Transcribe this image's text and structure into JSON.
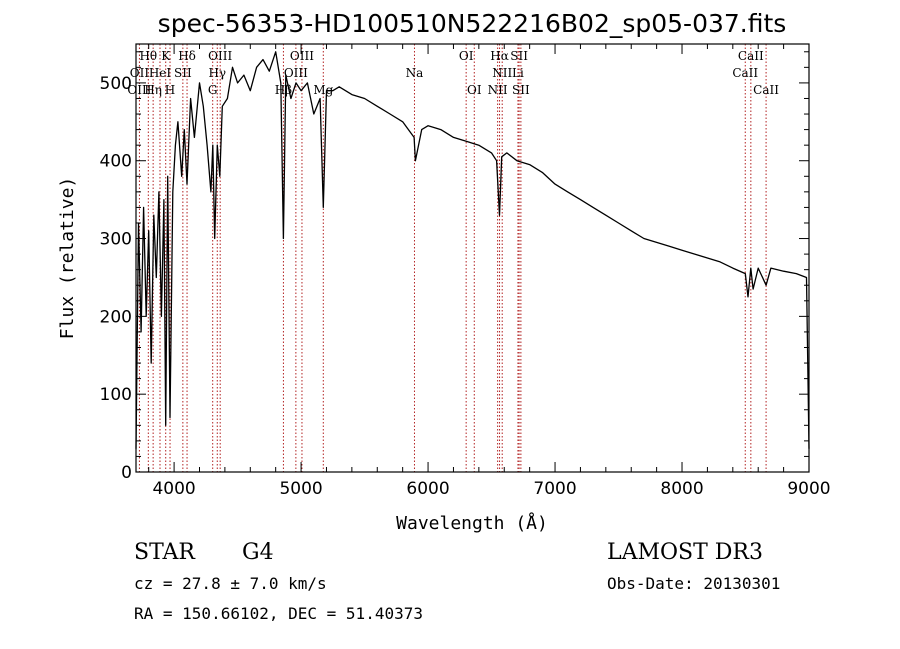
{
  "chart_data": {
    "type": "line",
    "title": "spec-56353-HD100510N522216B02_sp05-037.fits",
    "xlabel": "Wavelength (Å)",
    "ylabel": "Flux (relative)",
    "xlim": [
      3700,
      9000
    ],
    "ylim": [
      0,
      550
    ],
    "x_ticks": [
      4000,
      5000,
      6000,
      7000,
      8000,
      9000
    ],
    "y_ticks": [
      0,
      100,
      200,
      300,
      400,
      500
    ],
    "grid": false,
    "series": [
      {
        "name": "flux",
        "x": [
          3700,
          3720,
          3740,
          3760,
          3780,
          3800,
          3820,
          3840,
          3860,
          3880,
          3900,
          3920,
          3934,
          3950,
          3968,
          3990,
          4010,
          4030,
          4060,
          4080,
          4102,
          4130,
          4160,
          4200,
          4230,
          4260,
          4290,
          4305,
          4320,
          4340,
          4360,
          4380,
          4420,
          4460,
          4500,
          4550,
          4600,
          4650,
          4700,
          4750,
          4800,
          4840,
          4861,
          4880,
          4920,
          4960,
          5000,
          5050,
          5100,
          5150,
          5175,
          5200,
          5250,
          5300,
          5400,
          5500,
          5600,
          5700,
          5800,
          5890,
          5900,
          5950,
          6000,
          6100,
          6200,
          6300,
          6400,
          6500,
          6540,
          6563,
          6580,
          6620,
          6700,
          6800,
          6900,
          7000,
          7100,
          7200,
          7300,
          7400,
          7500,
          7600,
          7700,
          7800,
          7900,
          8000,
          8100,
          8200,
          8300,
          8400,
          8498,
          8520,
          8542,
          8560,
          8600,
          8662,
          8700,
          8800,
          8900,
          8980,
          9000
        ],
        "y": [
          30,
          320,
          180,
          340,
          200,
          310,
          140,
          330,
          250,
          360,
          200,
          350,
          60,
          380,
          70,
          360,
          420,
          450,
          380,
          440,
          370,
          480,
          430,
          500,
          470,
          420,
          360,
          420,
          300,
          420,
          380,
          470,
          480,
          520,
          500,
          510,
          490,
          520,
          530,
          515,
          540,
          500,
          300,
          510,
          480,
          500,
          490,
          500,
          460,
          480,
          340,
          490,
          490,
          495,
          485,
          480,
          470,
          460,
          450,
          430,
          400,
          440,
          445,
          440,
          430,
          425,
          420,
          410,
          400,
          330,
          405,
          410,
          400,
          395,
          385,
          370,
          360,
          350,
          340,
          330,
          320,
          310,
          300,
          295,
          290,
          285,
          280,
          275,
          270,
          262,
          255,
          225,
          262,
          235,
          262,
          240,
          262,
          258,
          255,
          250,
          30
        ]
      }
    ],
    "spectral_lines": [
      {
        "label": "Hθ",
        "x": 3797,
        "row": 0
      },
      {
        "label": "K",
        "x": 3934,
        "row": 0
      },
      {
        "label": "Hδ",
        "x": 4102,
        "row": 0
      },
      {
        "label": "OIII",
        "x": 4363,
        "row": 0
      },
      {
        "label": "OIII",
        "x": 5007,
        "row": 0
      },
      {
        "label": "OI",
        "x": 6300,
        "row": 0
      },
      {
        "label": "Hα",
        "x": 6563,
        "row": 0
      },
      {
        "label": "SII",
        "x": 6717,
        "row": 0
      },
      {
        "label": "CaII",
        "x": 8542,
        "row": 0
      },
      {
        "label": "OII",
        "x": 3727,
        "row": 1
      },
      {
        "label": "HeI",
        "x": 3889,
        "row": 1
      },
      {
        "label": "SII",
        "x": 4069,
        "row": 1
      },
      {
        "label": "Hγ",
        "x": 4340,
        "row": 1
      },
      {
        "label": "OIII",
        "x": 4959,
        "row": 1
      },
      {
        "label": "Na",
        "x": 5893,
        "row": 1
      },
      {
        "label": "NII",
        "x": 6584,
        "row": 1
      },
      {
        "label": "Li",
        "x": 6708,
        "row": 1
      },
      {
        "label": "CaII",
        "x": 8498,
        "row": 1
      },
      {
        "label": "OIII",
        "x": 3727,
        "row": 2
      },
      {
        "label": "Hη",
        "x": 3835,
        "row": 2
      },
      {
        "label": "H",
        "x": 3968,
        "row": 2
      },
      {
        "label": "G",
        "x": 4304,
        "row": 2
      },
      {
        "label": "Hβ",
        "x": 4861,
        "row": 2
      },
      {
        "label": "Mg",
        "x": 5175,
        "row": 2
      },
      {
        "label": "OI",
        "x": 6364,
        "row": 2
      },
      {
        "label": "NII",
        "x": 6548,
        "row": 2
      },
      {
        "label": "SII",
        "x": 6731,
        "row": 2
      },
      {
        "label": "CaII",
        "x": 8662,
        "row": 2
      }
    ],
    "marker_lines": [
      3727,
      3797,
      3835,
      3889,
      3934,
      3968,
      4069,
      4102,
      4304,
      4340,
      4363,
      4861,
      4959,
      5007,
      5175,
      5893,
      6300,
      6364,
      6548,
      6563,
      6584,
      6708,
      6717,
      6731,
      8498,
      8542,
      8662
    ]
  },
  "info": {
    "class_label": "STAR",
    "subclass_label": "G4",
    "survey_label": "LAMOST DR3",
    "cz_text": "cz = 27.8 ± 7.0 km/s",
    "obs_date_text": "Obs-Date: 20130301",
    "radec_text": "RA = 150.66102, DEC =  51.40373"
  },
  "colors": {
    "spectrum": "#000000",
    "marker_line": "#b22222",
    "axis": "#000000"
  }
}
